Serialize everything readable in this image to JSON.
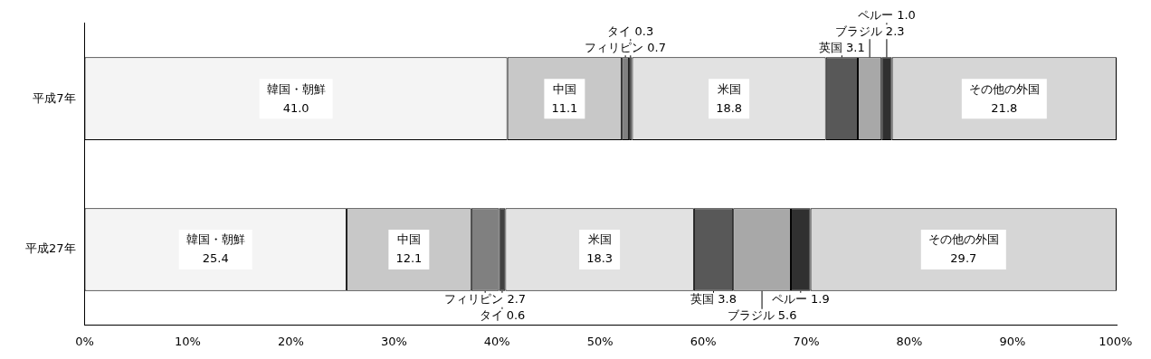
{
  "chart_data": {
    "type": "bar",
    "orientation": "horizontal",
    "stacked": true,
    "categories": [
      "平成7年",
      "平成27年"
    ],
    "series": [
      {
        "name": "韓国・朝鮮",
        "color": "#f4f4f4",
        "values": [
          41.0,
          25.4
        ],
        "value_labels": [
          "41.0",
          "25.4"
        ]
      },
      {
        "name": "中国",
        "color": "#c8c8c8",
        "values": [
          11.1,
          12.1
        ],
        "value_labels": [
          "11.1",
          "12.1"
        ]
      },
      {
        "name": "フィリピン",
        "color": "#808080",
        "values": [
          0.7,
          2.7
        ],
        "value_labels": [
          "0.7",
          "2.7"
        ]
      },
      {
        "name": "タイ",
        "color": "#404040",
        "values": [
          0.3,
          0.6
        ],
        "value_labels": [
          "0.3",
          "0.6"
        ]
      },
      {
        "name": "米国",
        "color": "#e2e2e2",
        "values": [
          18.8,
          18.3
        ],
        "value_labels": [
          "18.8",
          "18.3"
        ]
      },
      {
        "name": "英国",
        "color": "#585858",
        "values": [
          3.1,
          3.8
        ],
        "value_labels": [
          "3.1",
          "3.8"
        ]
      },
      {
        "name": "ブラジル",
        "color": "#a8a8a8",
        "values": [
          2.3,
          5.6
        ],
        "value_labels": [
          "2.3",
          "5.6"
        ]
      },
      {
        "name": "ペルー",
        "color": "#303030",
        "values": [
          1.0,
          1.9
        ],
        "value_labels": [
          "1.0",
          "1.9"
        ]
      },
      {
        "name": "その他の外国",
        "color": "#d6d6d6",
        "values": [
          21.8,
          29.7
        ],
        "value_labels": [
          "21.8",
          "29.7"
        ]
      }
    ],
    "xlim": [
      0,
      100.1
    ],
    "xticks": [
      {
        "value": 0,
        "label": "0%"
      },
      {
        "value": 10,
        "label": "10%"
      },
      {
        "value": 20,
        "label": "20%"
      },
      {
        "value": 30,
        "label": "30%"
      },
      {
        "value": 40,
        "label": "40%"
      },
      {
        "value": 50,
        "label": "50%"
      },
      {
        "value": 60,
        "label": "60%"
      },
      {
        "value": 70,
        "label": "70%"
      },
      {
        "value": 80,
        "label": "80%"
      },
      {
        "value": 90,
        "label": "90%"
      },
      {
        "value": 100,
        "label": "100%"
      }
    ],
    "grid": false,
    "legend": false
  }
}
